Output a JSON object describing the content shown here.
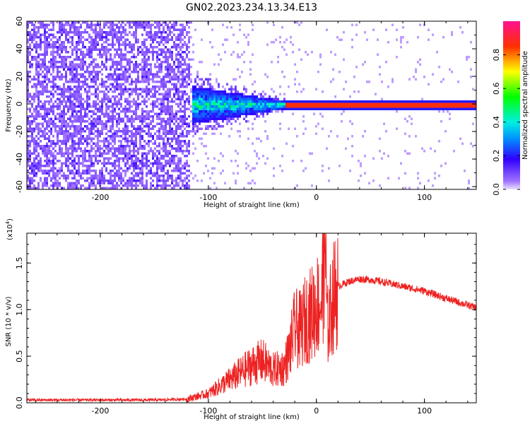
{
  "title": "GN02.2023.234.13.34.E13",
  "colors": {
    "snr_line": "#ee2222",
    "colormap": [
      "#d8c8ff",
      "#8a2be2",
      "#0000ff",
      "#00e5ff",
      "#00ff00",
      "#ffff00",
      "#ff0000",
      "#ff1493"
    ]
  },
  "chart_data": [
    {
      "type": "heatmap",
      "xlabel": "Height of straight line (km)",
      "ylabel": "Frequency (Hz)",
      "xlim": [
        -268,
        148
      ],
      "ylim": [
        -62,
        60
      ],
      "xticks": [
        -200,
        -100,
        0,
        100
      ],
      "xtick_labels": [
        "-200",
        "-100",
        "0",
        "100"
      ],
      "yticks": [
        -60,
        -40,
        -20,
        0,
        20,
        40,
        60
      ],
      "ytick_labels": [
        "-60",
        "-40",
        "-20",
        "0",
        "20",
        "40",
        "60"
      ],
      "colorbar": {
        "label": "Normalized spectral amplitude",
        "range": [
          0,
          1
        ],
        "ticks": [
          0,
          0.2,
          0.4,
          0.6,
          0.8
        ],
        "tick_labels": [
          "0.0",
          "0.2",
          "0.4",
          "0.6",
          "0.8"
        ]
      },
      "regions": [
        {
          "name": "noise",
          "x_range": [
            -268,
            -118
          ],
          "freq_range": [
            -60,
            60
          ],
          "amplitude": [
            0.0,
            0.15
          ]
        },
        {
          "name": "onset",
          "x_range": [
            -125,
            -30
          ],
          "freq_range": [
            -12,
            10
          ],
          "amplitude": [
            0.1,
            0.45
          ]
        },
        {
          "name": "signal",
          "x_range": [
            -30,
            148
          ],
          "freq_range": [
            -1,
            1
          ],
          "amplitude": [
            0.8,
            0.95
          ]
        }
      ]
    },
    {
      "type": "line",
      "xlabel": "Height of straight line (km)",
      "ylabel": "SNR (10 * v/v)",
      "y_multiplier_label": "(x10",
      "y_multiplier_exponent": "4",
      "y_multiplier_close": ")",
      "xlim": [
        -268,
        148
      ],
      "ylim": [
        0,
        1.82
      ],
      "xticks": [
        -200,
        -100,
        0,
        100
      ],
      "xtick_labels": [
        "-200",
        "-100",
        "0",
        "100"
      ],
      "yticks": [
        0,
        0.5,
        1.0,
        1.5
      ],
      "ytick_labels": [
        "0.0",
        "0.5",
        "1.0",
        "1.5"
      ],
      "series": [
        {
          "x": [
            -268,
            -200,
            -150,
            -120,
            -100,
            -80,
            -60,
            -50,
            -40,
            -30,
            -25,
            -20,
            -15,
            -10,
            -5,
            0,
            5,
            8,
            10,
            15,
            20,
            30,
            40,
            50,
            60,
            80,
            100,
            120,
            148
          ],
          "y": [
            0.03,
            0.03,
            0.03,
            0.04,
            0.1,
            0.25,
            0.4,
            0.45,
            0.35,
            0.38,
            0.55,
            0.8,
            0.78,
            0.9,
            0.95,
            1.05,
            1.1,
            1.8,
            0.8,
            1.1,
            1.25,
            1.3,
            1.33,
            1.32,
            1.3,
            1.25,
            1.2,
            1.12,
            1.02
          ]
        }
      ]
    }
  ]
}
